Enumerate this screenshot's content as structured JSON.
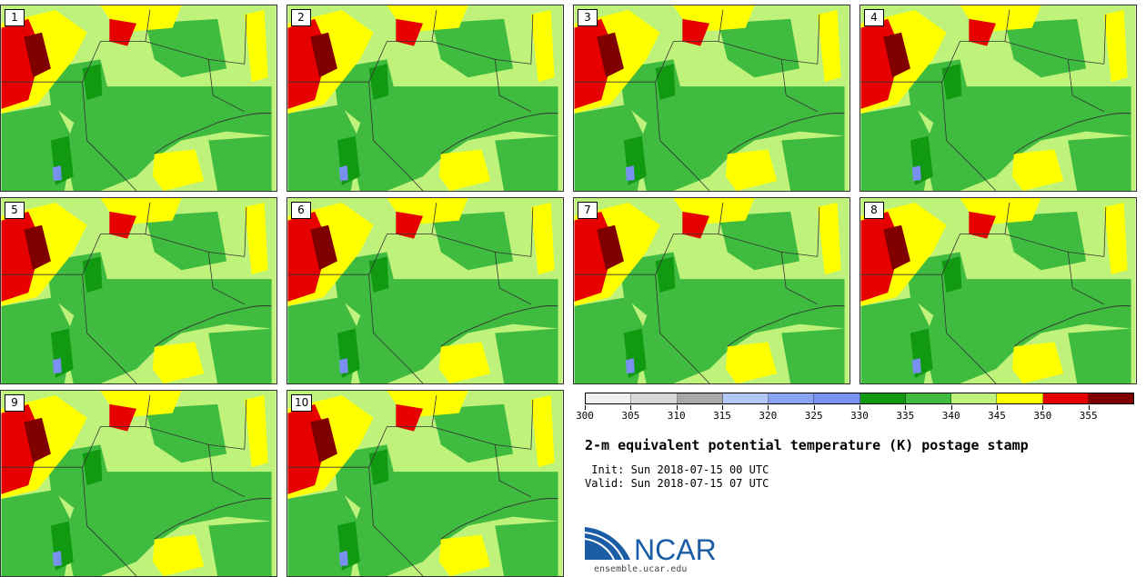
{
  "panels": [
    {
      "label": "1"
    },
    {
      "label": "2"
    },
    {
      "label": "3"
    },
    {
      "label": "4"
    },
    {
      "label": "5"
    },
    {
      "label": "6"
    },
    {
      "label": "7"
    },
    {
      "label": "8"
    },
    {
      "label": "9"
    },
    {
      "label": "10"
    }
  ],
  "colorbar": {
    "ticks": [
      "300",
      "305",
      "310",
      "315",
      "320",
      "325",
      "330",
      "335",
      "340",
      "345",
      "350",
      "355"
    ],
    "colors": [
      "#f0f0f0",
      "#d8d8d8",
      "#a8a8a8",
      "#b4c8f8",
      "#8aa4f4",
      "#7890f0",
      "#119911",
      "#3fbb3f",
      "#bff27a",
      "#ffff00",
      "#e60000",
      "#800000"
    ]
  },
  "title": "2-m equivalent potential temperature (K) postage stamp",
  "init": " Init: Sun 2018-07-15 00 UTC",
  "valid": "Valid: Sun 2018-07-15 07 UTC",
  "logo": {
    "text": "NCAR",
    "url": "ensemble.ucar.edu"
  }
}
